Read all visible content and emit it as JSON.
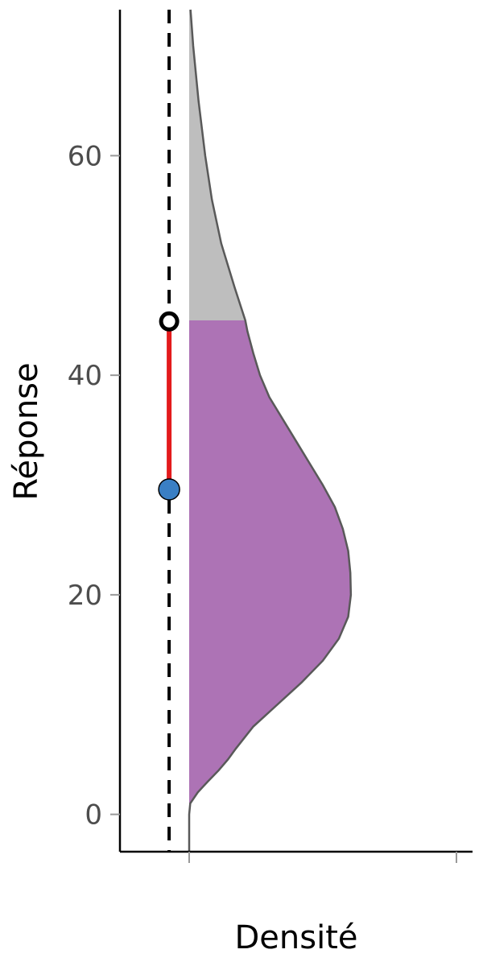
{
  "chart_data": {
    "type": "area",
    "xlabel": "Densité",
    "ylabel": "Réponse",
    "ylim": [
      -3.4,
      73.3
    ],
    "y_ticks": [
      0,
      20,
      40,
      60
    ],
    "y_tick_labels": [
      "0",
      "20",
      "40",
      "60"
    ],
    "x_ticks": [
      0,
      1
    ],
    "grid": false,
    "legend": "none",
    "density": {
      "y": [
        0,
        1,
        2,
        3,
        4,
        5,
        6,
        8,
        10,
        12,
        14,
        16,
        18,
        20,
        22,
        24,
        26,
        28,
        30,
        32,
        34,
        36,
        38,
        40,
        42,
        44,
        45,
        48,
        52,
        56,
        60,
        65,
        70,
        73.3
      ],
      "density": [
        0,
        0.004,
        0.032,
        0.07,
        0.11,
        0.145,
        0.175,
        0.24,
        0.33,
        0.42,
        0.5,
        0.56,
        0.595,
        0.605,
        0.603,
        0.595,
        0.575,
        0.545,
        0.5,
        0.45,
        0.4,
        0.35,
        0.3,
        0.265,
        0.24,
        0.218,
        0.21,
        0.17,
        0.12,
        0.085,
        0.06,
        0.035,
        0.015,
        0.005
      ],
      "cut": 45,
      "fill_below": "#ad73b5",
      "fill_above": "#bebebe",
      "line_color": "#595959"
    },
    "reference_line": {
      "x": -0.075,
      "style": "dashed",
      "color": "#000000"
    },
    "segment": {
      "x": -0.075,
      "y_from": 29.6,
      "y_to": 44.9,
      "color": "#e31a1c"
    },
    "points": [
      {
        "x": -0.075,
        "y": 29.6,
        "fill": "#3a7fc4",
        "stroke": "#000000",
        "kind": "filled"
      },
      {
        "x": -0.075,
        "y": 44.9,
        "fill": "#ffffff",
        "stroke": "#000000",
        "kind": "open"
      }
    ]
  }
}
